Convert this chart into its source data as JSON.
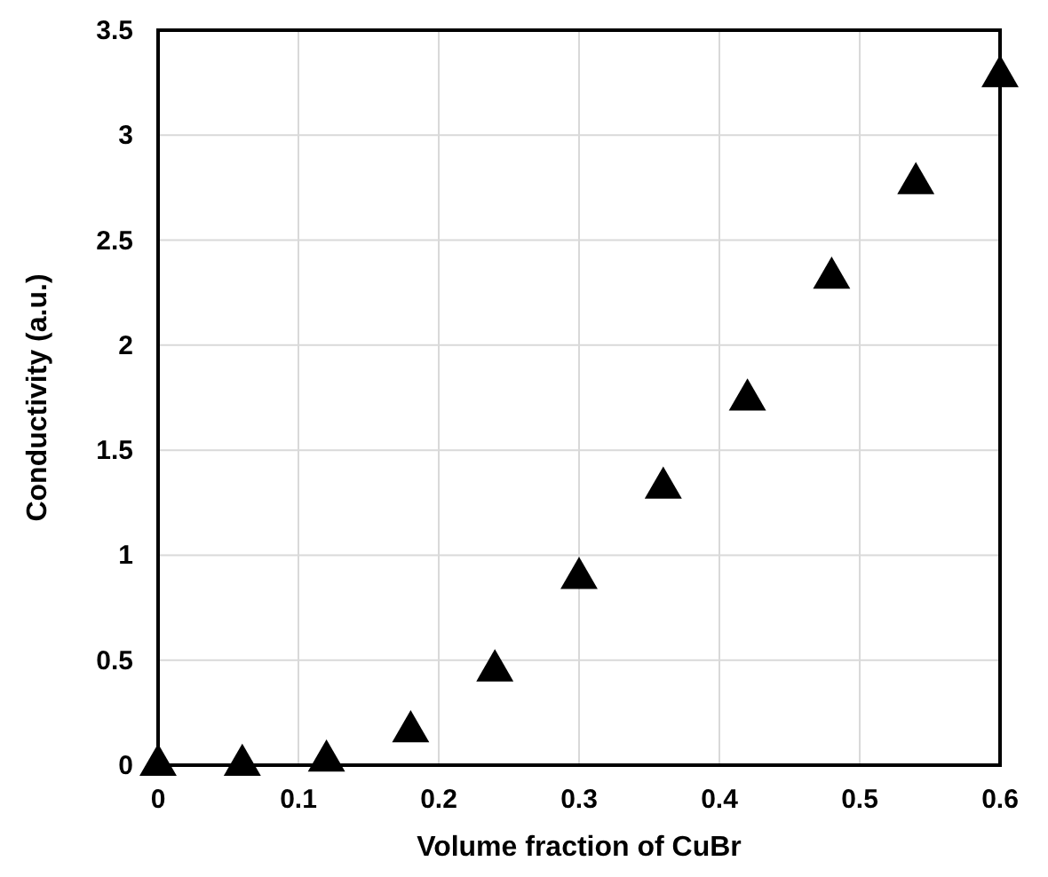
{
  "chart_data": {
    "type": "scatter",
    "xlabel": "Volume fraction of CuBr",
    "ylabel": "Conductivity (a.u.)",
    "x": [
      0,
      0.06,
      0.12,
      0.18,
      0.24,
      0.3,
      0.36,
      0.42,
      0.48,
      0.54,
      0.6
    ],
    "series": [
      {
        "color": "#000000",
        "values": [
          0,
          0,
          0.02,
          0.16,
          0.45,
          0.89,
          1.32,
          1.74,
          2.32,
          2.77,
          3.28
        ]
      }
    ],
    "xlim": [
      0,
      0.6
    ],
    "ylim": [
      0,
      3.5
    ],
    "xticks": [
      0,
      0.1,
      0.2,
      0.3,
      0.4,
      0.5,
      0.6
    ],
    "yticks": [
      0,
      0.5,
      1,
      1.5,
      2,
      2.5,
      3,
      3.5
    ],
    "grid": true,
    "marker": "triangle"
  }
}
